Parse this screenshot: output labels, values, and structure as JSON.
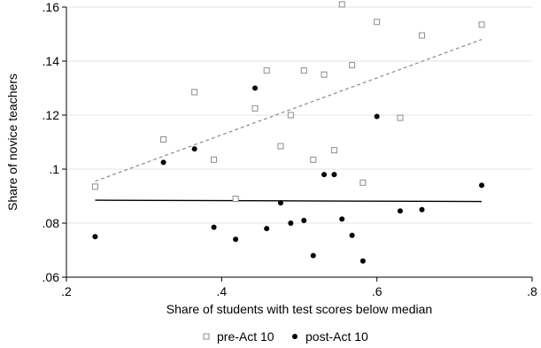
{
  "chart_data": {
    "type": "scatter",
    "xlabel": "Share of students with test scores below median",
    "ylabel": "Share of novice teachers",
    "xlim": [
      0.2,
      0.8
    ],
    "ylim": [
      0.06,
      0.16
    ],
    "xticks": [
      {
        "value": 0.2,
        "label": ".2"
      },
      {
        "value": 0.4,
        "label": ".4"
      },
      {
        "value": 0.6,
        "label": ".6"
      },
      {
        "value": 0.8,
        "label": ".8"
      }
    ],
    "yticks": [
      {
        "value": 0.06,
        "label": ".06"
      },
      {
        "value": 0.08,
        "label": ".08"
      },
      {
        "value": 0.1,
        "label": ".1"
      },
      {
        "value": 0.12,
        "label": ".12"
      },
      {
        "value": 0.14,
        "label": ".14"
      },
      {
        "value": 0.16,
        "label": ".16"
      }
    ],
    "grid": "horizontal",
    "legend_position": "bottom",
    "series": [
      {
        "name": "pre-Act 10",
        "marker": "hollow-square",
        "color": "#8c8c8c",
        "points": [
          {
            "x": 0.237,
            "y": 0.0935
          },
          {
            "x": 0.325,
            "y": 0.111
          },
          {
            "x": 0.365,
            "y": 0.1285
          },
          {
            "x": 0.39,
            "y": 0.1035
          },
          {
            "x": 0.418,
            "y": 0.089
          },
          {
            "x": 0.443,
            "y": 0.1225
          },
          {
            "x": 0.458,
            "y": 0.1365
          },
          {
            "x": 0.476,
            "y": 0.1085
          },
          {
            "x": 0.489,
            "y": 0.12
          },
          {
            "x": 0.506,
            "y": 0.1365
          },
          {
            "x": 0.518,
            "y": 0.1035
          },
          {
            "x": 0.532,
            "y": 0.135
          },
          {
            "x": 0.545,
            "y": 0.107
          },
          {
            "x": 0.555,
            "y": 0.161
          },
          {
            "x": 0.568,
            "y": 0.1385
          },
          {
            "x": 0.582,
            "y": 0.095
          },
          {
            "x": 0.6,
            "y": 0.1545
          },
          {
            "x": 0.63,
            "y": 0.119
          },
          {
            "x": 0.658,
            "y": 0.1495
          },
          {
            "x": 0.735,
            "y": 0.1535
          }
        ]
      },
      {
        "name": "post-Act 10",
        "marker": "filled-circle",
        "color": "#000000",
        "points": [
          {
            "x": 0.237,
            "y": 0.075
          },
          {
            "x": 0.325,
            "y": 0.1025
          },
          {
            "x": 0.365,
            "y": 0.1075
          },
          {
            "x": 0.39,
            "y": 0.0785
          },
          {
            "x": 0.418,
            "y": 0.074
          },
          {
            "x": 0.443,
            "y": 0.13
          },
          {
            "x": 0.458,
            "y": 0.078
          },
          {
            "x": 0.476,
            "y": 0.0875
          },
          {
            "x": 0.489,
            "y": 0.08
          },
          {
            "x": 0.506,
            "y": 0.081
          },
          {
            "x": 0.518,
            "y": 0.068
          },
          {
            "x": 0.532,
            "y": 0.098
          },
          {
            "x": 0.545,
            "y": 0.098
          },
          {
            "x": 0.555,
            "y": 0.0815
          },
          {
            "x": 0.568,
            "y": 0.0755
          },
          {
            "x": 0.582,
            "y": 0.066
          },
          {
            "x": 0.6,
            "y": 0.1195
          },
          {
            "x": 0.63,
            "y": 0.0845
          },
          {
            "x": 0.658,
            "y": 0.085
          },
          {
            "x": 0.735,
            "y": 0.094
          }
        ]
      }
    ],
    "fit_lines": [
      {
        "series": "pre-Act 10",
        "style": "dashed",
        "color": "#8c8c8c",
        "x1": 0.237,
        "y1": 0.0955,
        "x2": 0.735,
        "y2": 0.148
      },
      {
        "series": "post-Act 10",
        "style": "solid",
        "color": "#000000",
        "x1": 0.237,
        "y1": 0.0885,
        "x2": 0.735,
        "y2": 0.088
      }
    ]
  }
}
